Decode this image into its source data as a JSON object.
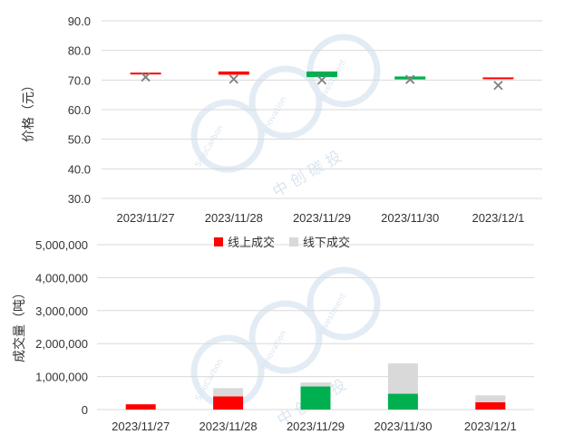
{
  "chart_data": [
    {
      "type": "candlestick",
      "ylabel": "价格（元）",
      "ylim": [
        30,
        90
      ],
      "yticks": [
        "90.0",
        "80.0",
        "70.0",
        "60.0",
        "50.0",
        "40.0",
        "30.0"
      ],
      "categories": [
        "2023/11/27",
        "2023/11/28",
        "2023/11/29",
        "2023/11/30",
        "2023/12/1"
      ],
      "candles": [
        {
          "open": 72.0,
          "close": 72.5,
          "direction": "up"
        },
        {
          "open": 71.8,
          "close": 72.9,
          "direction": "up"
        },
        {
          "open": 72.9,
          "close": 71.0,
          "direction": "down"
        },
        {
          "open": 71.2,
          "close": 70.2,
          "direction": "down"
        },
        {
          "open": 70.6,
          "close": 70.9,
          "direction": "up"
        }
      ],
      "markers": [
        71.0,
        70.3,
        70.0,
        70.2,
        68.2
      ],
      "colors": {
        "up": "#ff0000",
        "down": "#00b050",
        "marker": "#7f7f7f"
      }
    },
    {
      "type": "bar",
      "stacked": true,
      "ylabel": "成交量（吨）",
      "ylim": [
        0,
        5000000
      ],
      "yticks": [
        "5,000,000",
        "4,000,000",
        "3,000,000",
        "2,000,000",
        "1,000,000",
        "0"
      ],
      "categories": [
        "2023/11/27",
        "2023/11/28",
        "2023/11/29",
        "2023/11/30",
        "2023/12/1"
      ],
      "legend_position": "top",
      "series": [
        {
          "name": "线上成交",
          "values": [
            160000,
            400000,
            700000,
            480000,
            220000
          ]
        },
        {
          "name": "线下成交",
          "values": [
            0,
            250000,
            120000,
            920000,
            210000
          ]
        }
      ],
      "online_colors": [
        "#ff0000",
        "#ff0000",
        "#00b050",
        "#00b050",
        "#ff0000"
      ],
      "colors": {
        "online": "#ff0000",
        "offline": "#d9d9d9"
      }
    }
  ],
  "watermark": {
    "cn": "中 创 碳 投",
    "en_left": "SinoCarbon",
    "en_mid": "Innovation",
    "en_right": "Investment"
  }
}
